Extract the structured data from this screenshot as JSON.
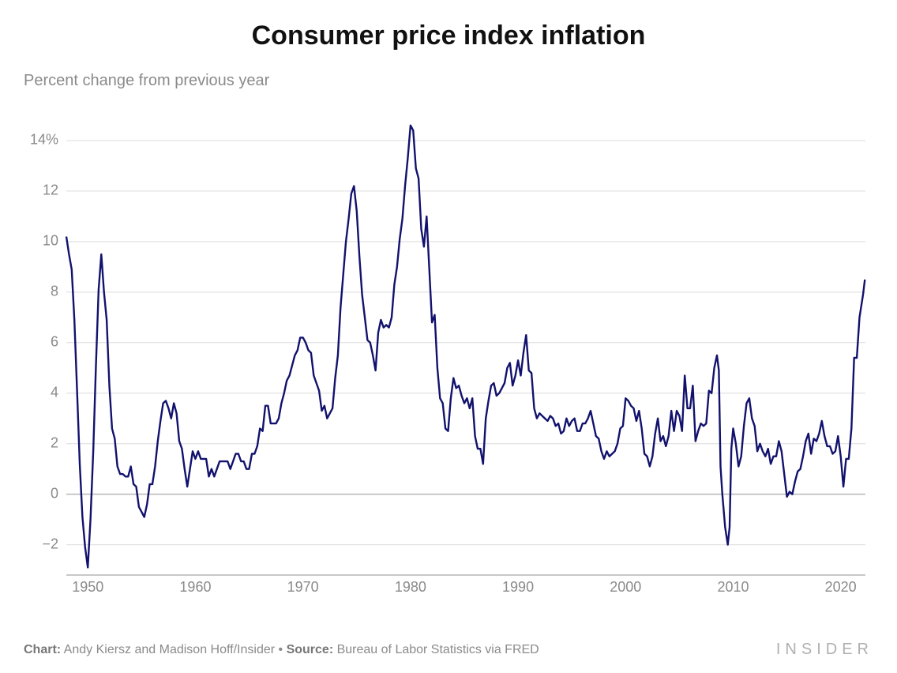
{
  "title": "Consumer price index inflation",
  "subtitle": "Percent change from previous year",
  "credit_label_chart": "Chart:",
  "credit_chart": "Andy Kiersz and Madison Hoff/Insider",
  "credit_sep": " • ",
  "credit_label_source": "Source:",
  "credit_source": "Bureau of Labor Statistics via FRED",
  "brand": "INSIDER",
  "chart": {
    "type": "line",
    "line_color": "#12126e",
    "line_width": 2.4,
    "background_color": "#ffffff",
    "grid_color": "#dcdcdc",
    "zero_line_color": "#b6b6b6",
    "axis_line_color": "#b6b6b6",
    "label_color": "#8a8a8a",
    "label_fontsize": 18,
    "xlim": [
      1948,
      2022.3
    ],
    "ylim": [
      -3.2,
      15
    ],
    "yticks": [
      -2,
      0,
      2,
      4,
      6,
      8,
      10,
      12,
      14
    ],
    "ytick_labels": [
      "−2",
      "0",
      "2",
      "4",
      "6",
      "8",
      "10",
      "12",
      "14%"
    ],
    "xticks": [
      1950,
      1960,
      1970,
      1980,
      1990,
      2000,
      2010,
      2020
    ],
    "xtick_labels": [
      "1950",
      "1960",
      "1970",
      "1980",
      "1990",
      "2000",
      "2010",
      "2020"
    ],
    "series": [
      {
        "x": 1948.0,
        "y": 10.2
      },
      {
        "x": 1948.25,
        "y": 9.5
      },
      {
        "x": 1948.5,
        "y": 8.9
      },
      {
        "x": 1948.75,
        "y": 6.9
      },
      {
        "x": 1949.0,
        "y": 4.1
      },
      {
        "x": 1949.25,
        "y": 1.2
      },
      {
        "x": 1949.5,
        "y": -0.9
      },
      {
        "x": 1949.75,
        "y": -2.1
      },
      {
        "x": 1950.0,
        "y": -2.9
      },
      {
        "x": 1950.25,
        "y": -1.0
      },
      {
        "x": 1950.5,
        "y": 1.7
      },
      {
        "x": 1950.75,
        "y": 5.1
      },
      {
        "x": 1951.0,
        "y": 8.1
      },
      {
        "x": 1951.25,
        "y": 9.5
      },
      {
        "x": 1951.5,
        "y": 8.0
      },
      {
        "x": 1951.75,
        "y": 6.9
      },
      {
        "x": 1952.0,
        "y": 4.3
      },
      {
        "x": 1952.25,
        "y": 2.6
      },
      {
        "x": 1952.5,
        "y": 2.2
      },
      {
        "x": 1952.75,
        "y": 1.1
      },
      {
        "x": 1953.0,
        "y": 0.8
      },
      {
        "x": 1953.25,
        "y": 0.8
      },
      {
        "x": 1953.5,
        "y": 0.7
      },
      {
        "x": 1953.75,
        "y": 0.7
      },
      {
        "x": 1954.0,
        "y": 1.1
      },
      {
        "x": 1954.25,
        "y": 0.4
      },
      {
        "x": 1954.5,
        "y": 0.3
      },
      {
        "x": 1954.75,
        "y": -0.5
      },
      {
        "x": 1955.0,
        "y": -0.7
      },
      {
        "x": 1955.25,
        "y": -0.9
      },
      {
        "x": 1955.5,
        "y": -0.4
      },
      {
        "x": 1955.75,
        "y": 0.4
      },
      {
        "x": 1956.0,
        "y": 0.4
      },
      {
        "x": 1956.25,
        "y": 1.1
      },
      {
        "x": 1956.5,
        "y": 2.1
      },
      {
        "x": 1956.75,
        "y": 2.9
      },
      {
        "x": 1957.0,
        "y": 3.6
      },
      {
        "x": 1957.25,
        "y": 3.7
      },
      {
        "x": 1957.5,
        "y": 3.4
      },
      {
        "x": 1957.75,
        "y": 3.0
      },
      {
        "x": 1958.0,
        "y": 3.6
      },
      {
        "x": 1958.25,
        "y": 3.2
      },
      {
        "x": 1958.5,
        "y": 2.1
      },
      {
        "x": 1958.75,
        "y": 1.8
      },
      {
        "x": 1959.0,
        "y": 1.0
      },
      {
        "x": 1959.25,
        "y": 0.3
      },
      {
        "x": 1959.5,
        "y": 1.0
      },
      {
        "x": 1959.75,
        "y": 1.7
      },
      {
        "x": 1960.0,
        "y": 1.4
      },
      {
        "x": 1960.25,
        "y": 1.7
      },
      {
        "x": 1960.5,
        "y": 1.4
      },
      {
        "x": 1960.75,
        "y": 1.4
      },
      {
        "x": 1961.0,
        "y": 1.4
      },
      {
        "x": 1961.25,
        "y": 0.7
      },
      {
        "x": 1961.5,
        "y": 1.0
      },
      {
        "x": 1961.75,
        "y": 0.7
      },
      {
        "x": 1962.0,
        "y": 1.0
      },
      {
        "x": 1962.25,
        "y": 1.3
      },
      {
        "x": 1962.5,
        "y": 1.3
      },
      {
        "x": 1962.75,
        "y": 1.3
      },
      {
        "x": 1963.0,
        "y": 1.3
      },
      {
        "x": 1963.25,
        "y": 1.0
      },
      {
        "x": 1963.5,
        "y": 1.3
      },
      {
        "x": 1963.75,
        "y": 1.6
      },
      {
        "x": 1964.0,
        "y": 1.6
      },
      {
        "x": 1964.25,
        "y": 1.3
      },
      {
        "x": 1964.5,
        "y": 1.3
      },
      {
        "x": 1964.75,
        "y": 1.0
      },
      {
        "x": 1965.0,
        "y": 1.0
      },
      {
        "x": 1965.25,
        "y": 1.6
      },
      {
        "x": 1965.5,
        "y": 1.6
      },
      {
        "x": 1965.75,
        "y": 1.9
      },
      {
        "x": 1966.0,
        "y": 2.6
      },
      {
        "x": 1966.25,
        "y": 2.5
      },
      {
        "x": 1966.5,
        "y": 3.5
      },
      {
        "x": 1966.75,
        "y": 3.5
      },
      {
        "x": 1967.0,
        "y": 2.8
      },
      {
        "x": 1967.25,
        "y": 2.8
      },
      {
        "x": 1967.5,
        "y": 2.8
      },
      {
        "x": 1967.75,
        "y": 3.0
      },
      {
        "x": 1968.0,
        "y": 3.6
      },
      {
        "x": 1968.25,
        "y": 4.0
      },
      {
        "x": 1968.5,
        "y": 4.5
      },
      {
        "x": 1968.75,
        "y": 4.7
      },
      {
        "x": 1969.0,
        "y": 5.1
      },
      {
        "x": 1969.25,
        "y": 5.5
      },
      {
        "x": 1969.5,
        "y": 5.7
      },
      {
        "x": 1969.75,
        "y": 6.2
      },
      {
        "x": 1970.0,
        "y": 6.2
      },
      {
        "x": 1970.25,
        "y": 6.0
      },
      {
        "x": 1970.5,
        "y": 5.7
      },
      {
        "x": 1970.75,
        "y": 5.6
      },
      {
        "x": 1971.0,
        "y": 4.7
      },
      {
        "x": 1971.25,
        "y": 4.4
      },
      {
        "x": 1971.5,
        "y": 4.1
      },
      {
        "x": 1971.75,
        "y": 3.3
      },
      {
        "x": 1972.0,
        "y": 3.5
      },
      {
        "x": 1972.25,
        "y": 3.0
      },
      {
        "x": 1972.5,
        "y": 3.2
      },
      {
        "x": 1972.75,
        "y": 3.4
      },
      {
        "x": 1973.0,
        "y": 4.6
      },
      {
        "x": 1973.25,
        "y": 5.5
      },
      {
        "x": 1973.5,
        "y": 7.4
      },
      {
        "x": 1973.75,
        "y": 8.7
      },
      {
        "x": 1974.0,
        "y": 10.0
      },
      {
        "x": 1974.25,
        "y": 10.9
      },
      {
        "x": 1974.5,
        "y": 11.9
      },
      {
        "x": 1974.75,
        "y": 12.2
      },
      {
        "x": 1975.0,
        "y": 11.2
      },
      {
        "x": 1975.25,
        "y": 9.4
      },
      {
        "x": 1975.5,
        "y": 7.9
      },
      {
        "x": 1975.75,
        "y": 7.0
      },
      {
        "x": 1976.0,
        "y": 6.1
      },
      {
        "x": 1976.25,
        "y": 6.0
      },
      {
        "x": 1976.5,
        "y": 5.5
      },
      {
        "x": 1976.75,
        "y": 4.9
      },
      {
        "x": 1977.0,
        "y": 6.4
      },
      {
        "x": 1977.25,
        "y": 6.9
      },
      {
        "x": 1977.5,
        "y": 6.6
      },
      {
        "x": 1977.75,
        "y": 6.7
      },
      {
        "x": 1978.0,
        "y": 6.6
      },
      {
        "x": 1978.25,
        "y": 7.0
      },
      {
        "x": 1978.5,
        "y": 8.3
      },
      {
        "x": 1978.75,
        "y": 9.0
      },
      {
        "x": 1979.0,
        "y": 10.1
      },
      {
        "x": 1979.25,
        "y": 10.9
      },
      {
        "x": 1979.5,
        "y": 12.2
      },
      {
        "x": 1979.75,
        "y": 13.3
      },
      {
        "x": 1980.0,
        "y": 14.6
      },
      {
        "x": 1980.25,
        "y": 14.4
      },
      {
        "x": 1980.5,
        "y": 12.9
      },
      {
        "x": 1980.75,
        "y": 12.5
      },
      {
        "x": 1981.0,
        "y": 10.5
      },
      {
        "x": 1981.25,
        "y": 9.8
      },
      {
        "x": 1981.5,
        "y": 11.0
      },
      {
        "x": 1981.75,
        "y": 8.9
      },
      {
        "x": 1982.0,
        "y": 6.8
      },
      {
        "x": 1982.25,
        "y": 7.1
      },
      {
        "x": 1982.5,
        "y": 5.0
      },
      {
        "x": 1982.75,
        "y": 3.8
      },
      {
        "x": 1983.0,
        "y": 3.6
      },
      {
        "x": 1983.25,
        "y": 2.6
      },
      {
        "x": 1983.5,
        "y": 2.5
      },
      {
        "x": 1983.75,
        "y": 3.8
      },
      {
        "x": 1984.0,
        "y": 4.6
      },
      {
        "x": 1984.25,
        "y": 4.2
      },
      {
        "x": 1984.5,
        "y": 4.3
      },
      {
        "x": 1984.75,
        "y": 3.9
      },
      {
        "x": 1985.0,
        "y": 3.6
      },
      {
        "x": 1985.25,
        "y": 3.8
      },
      {
        "x": 1985.5,
        "y": 3.4
      },
      {
        "x": 1985.75,
        "y": 3.8
      },
      {
        "x": 1986.0,
        "y": 2.3
      },
      {
        "x": 1986.25,
        "y": 1.8
      },
      {
        "x": 1986.5,
        "y": 1.8
      },
      {
        "x": 1986.75,
        "y": 1.2
      },
      {
        "x": 1987.0,
        "y": 3.0
      },
      {
        "x": 1987.25,
        "y": 3.7
      },
      {
        "x": 1987.5,
        "y": 4.3
      },
      {
        "x": 1987.75,
        "y": 4.4
      },
      {
        "x": 1988.0,
        "y": 3.9
      },
      {
        "x": 1988.25,
        "y": 4.0
      },
      {
        "x": 1988.5,
        "y": 4.2
      },
      {
        "x": 1988.75,
        "y": 4.4
      },
      {
        "x": 1989.0,
        "y": 5.0
      },
      {
        "x": 1989.25,
        "y": 5.2
      },
      {
        "x": 1989.5,
        "y": 4.3
      },
      {
        "x": 1989.75,
        "y": 4.7
      },
      {
        "x": 1990.0,
        "y": 5.3
      },
      {
        "x": 1990.25,
        "y": 4.7
      },
      {
        "x": 1990.5,
        "y": 5.6
      },
      {
        "x": 1990.75,
        "y": 6.3
      },
      {
        "x": 1991.0,
        "y": 4.9
      },
      {
        "x": 1991.25,
        "y": 4.8
      },
      {
        "x": 1991.5,
        "y": 3.4
      },
      {
        "x": 1991.75,
        "y": 3.0
      },
      {
        "x": 1992.0,
        "y": 3.2
      },
      {
        "x": 1992.25,
        "y": 3.1
      },
      {
        "x": 1992.5,
        "y": 3.0
      },
      {
        "x": 1992.75,
        "y": 2.9
      },
      {
        "x": 1993.0,
        "y": 3.1
      },
      {
        "x": 1993.25,
        "y": 3.0
      },
      {
        "x": 1993.5,
        "y": 2.7
      },
      {
        "x": 1993.75,
        "y": 2.8
      },
      {
        "x": 1994.0,
        "y": 2.4
      },
      {
        "x": 1994.25,
        "y": 2.5
      },
      {
        "x": 1994.5,
        "y": 3.0
      },
      {
        "x": 1994.75,
        "y": 2.7
      },
      {
        "x": 1995.0,
        "y": 2.9
      },
      {
        "x": 1995.25,
        "y": 3.0
      },
      {
        "x": 1995.5,
        "y": 2.5
      },
      {
        "x": 1995.75,
        "y": 2.5
      },
      {
        "x": 1996.0,
        "y": 2.8
      },
      {
        "x": 1996.25,
        "y": 2.8
      },
      {
        "x": 1996.5,
        "y": 3.0
      },
      {
        "x": 1996.75,
        "y": 3.3
      },
      {
        "x": 1997.0,
        "y": 2.8
      },
      {
        "x": 1997.25,
        "y": 2.3
      },
      {
        "x": 1997.5,
        "y": 2.2
      },
      {
        "x": 1997.75,
        "y": 1.7
      },
      {
        "x": 1998.0,
        "y": 1.4
      },
      {
        "x": 1998.25,
        "y": 1.7
      },
      {
        "x": 1998.5,
        "y": 1.5
      },
      {
        "x": 1998.75,
        "y": 1.6
      },
      {
        "x": 1999.0,
        "y": 1.7
      },
      {
        "x": 1999.25,
        "y": 2.0
      },
      {
        "x": 1999.5,
        "y": 2.6
      },
      {
        "x": 1999.75,
        "y": 2.7
      },
      {
        "x": 2000.0,
        "y": 3.8
      },
      {
        "x": 2000.25,
        "y": 3.7
      },
      {
        "x": 2000.5,
        "y": 3.5
      },
      {
        "x": 2000.75,
        "y": 3.4
      },
      {
        "x": 2001.0,
        "y": 2.9
      },
      {
        "x": 2001.25,
        "y": 3.3
      },
      {
        "x": 2001.5,
        "y": 2.6
      },
      {
        "x": 2001.75,
        "y": 1.6
      },
      {
        "x": 2002.0,
        "y": 1.5
      },
      {
        "x": 2002.25,
        "y": 1.1
      },
      {
        "x": 2002.5,
        "y": 1.5
      },
      {
        "x": 2002.75,
        "y": 2.4
      },
      {
        "x": 2003.0,
        "y": 3.0
      },
      {
        "x": 2003.25,
        "y": 2.1
      },
      {
        "x": 2003.5,
        "y": 2.3
      },
      {
        "x": 2003.75,
        "y": 1.9
      },
      {
        "x": 2004.0,
        "y": 2.3
      },
      {
        "x": 2004.25,
        "y": 3.3
      },
      {
        "x": 2004.5,
        "y": 2.5
      },
      {
        "x": 2004.75,
        "y": 3.3
      },
      {
        "x": 2005.0,
        "y": 3.1
      },
      {
        "x": 2005.25,
        "y": 2.5
      },
      {
        "x": 2005.5,
        "y": 4.7
      },
      {
        "x": 2005.75,
        "y": 3.4
      },
      {
        "x": 2006.0,
        "y": 3.4
      },
      {
        "x": 2006.25,
        "y": 4.3
      },
      {
        "x": 2006.5,
        "y": 2.1
      },
      {
        "x": 2006.75,
        "y": 2.5
      },
      {
        "x": 2007.0,
        "y": 2.8
      },
      {
        "x": 2007.25,
        "y": 2.7
      },
      {
        "x": 2007.5,
        "y": 2.8
      },
      {
        "x": 2007.75,
        "y": 4.1
      },
      {
        "x": 2008.0,
        "y": 4.0
      },
      {
        "x": 2008.25,
        "y": 5.0
      },
      {
        "x": 2008.5,
        "y": 5.5
      },
      {
        "x": 2008.67,
        "y": 4.9
      },
      {
        "x": 2008.83,
        "y": 1.1
      },
      {
        "x": 2009.0,
        "y": 0.0
      },
      {
        "x": 2009.25,
        "y": -1.3
      },
      {
        "x": 2009.5,
        "y": -2.0
      },
      {
        "x": 2009.67,
        "y": -1.3
      },
      {
        "x": 2009.83,
        "y": 1.8
      },
      {
        "x": 2010.0,
        "y": 2.6
      },
      {
        "x": 2010.25,
        "y": 2.0
      },
      {
        "x": 2010.5,
        "y": 1.1
      },
      {
        "x": 2010.75,
        "y": 1.5
      },
      {
        "x": 2011.0,
        "y": 2.7
      },
      {
        "x": 2011.25,
        "y": 3.6
      },
      {
        "x": 2011.5,
        "y": 3.8
      },
      {
        "x": 2011.75,
        "y": 3.0
      },
      {
        "x": 2012.0,
        "y": 2.7
      },
      {
        "x": 2012.25,
        "y": 1.7
      },
      {
        "x": 2012.5,
        "y": 2.0
      },
      {
        "x": 2012.75,
        "y": 1.7
      },
      {
        "x": 2013.0,
        "y": 1.5
      },
      {
        "x": 2013.25,
        "y": 1.8
      },
      {
        "x": 2013.5,
        "y": 1.2
      },
      {
        "x": 2013.75,
        "y": 1.5
      },
      {
        "x": 2014.0,
        "y": 1.5
      },
      {
        "x": 2014.25,
        "y": 2.1
      },
      {
        "x": 2014.5,
        "y": 1.7
      },
      {
        "x": 2014.75,
        "y": 0.8
      },
      {
        "x": 2015.0,
        "y": -0.1
      },
      {
        "x": 2015.25,
        "y": 0.1
      },
      {
        "x": 2015.5,
        "y": 0.0
      },
      {
        "x": 2015.75,
        "y": 0.5
      },
      {
        "x": 2016.0,
        "y": 0.9
      },
      {
        "x": 2016.25,
        "y": 1.0
      },
      {
        "x": 2016.5,
        "y": 1.5
      },
      {
        "x": 2016.75,
        "y": 2.1
      },
      {
        "x": 2017.0,
        "y": 2.4
      },
      {
        "x": 2017.25,
        "y": 1.6
      },
      {
        "x": 2017.5,
        "y": 2.2
      },
      {
        "x": 2017.75,
        "y": 2.1
      },
      {
        "x": 2018.0,
        "y": 2.4
      },
      {
        "x": 2018.25,
        "y": 2.9
      },
      {
        "x": 2018.5,
        "y": 2.3
      },
      {
        "x": 2018.75,
        "y": 1.9
      },
      {
        "x": 2019.0,
        "y": 1.9
      },
      {
        "x": 2019.25,
        "y": 1.6
      },
      {
        "x": 2019.5,
        "y": 1.7
      },
      {
        "x": 2019.75,
        "y": 2.3
      },
      {
        "x": 2020.0,
        "y": 1.5
      },
      {
        "x": 2020.25,
        "y": 0.3
      },
      {
        "x": 2020.5,
        "y": 1.4
      },
      {
        "x": 2020.75,
        "y": 1.4
      },
      {
        "x": 2021.0,
        "y": 2.6
      },
      {
        "x": 2021.25,
        "y": 5.4
      },
      {
        "x": 2021.5,
        "y": 5.4
      },
      {
        "x": 2021.75,
        "y": 7.0
      },
      {
        "x": 2022.08,
        "y": 7.9
      },
      {
        "x": 2022.25,
        "y": 8.5
      }
    ]
  }
}
